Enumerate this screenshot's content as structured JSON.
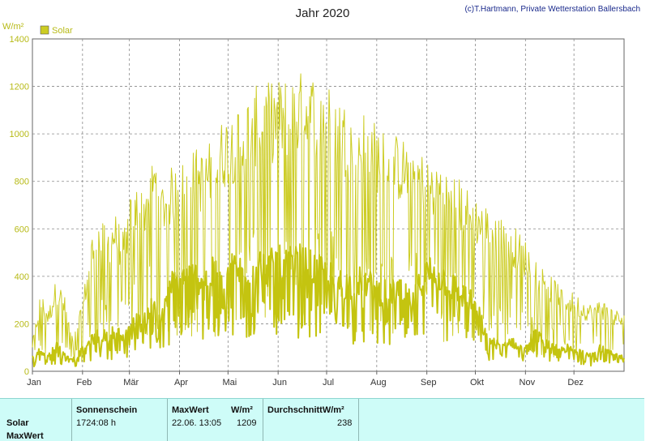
{
  "chart_data": {
    "type": "line",
    "title": "Jahr 2020",
    "credit": "(c)T.Hartmann, Private Wetterstation Ballersbach",
    "ylabel": "W/m²",
    "ylim": [
      0,
      1400
    ],
    "yticks": [
      "0",
      "200",
      "400",
      "600",
      "800",
      "1000",
      "1200",
      "1400"
    ],
    "categories": [
      "Jan",
      "Feb",
      "Mär",
      "Apr",
      "Mai",
      "Jun",
      "Jul",
      "Aug",
      "Sep",
      "Okt",
      "Nov",
      "Dez"
    ],
    "grid": true,
    "legend_position": "top-left",
    "series": [
      {
        "name": "Solar",
        "color": "#cccc22",
        "role": "daily-max",
        "points": [
          [
            0,
            120
          ],
          [
            5,
            320
          ],
          [
            10,
            250
          ],
          [
            15,
            380
          ],
          [
            20,
            300
          ],
          [
            25,
            130
          ],
          [
            31,
            280
          ],
          [
            36,
            540
          ],
          [
            41,
            610
          ],
          [
            46,
            580
          ],
          [
            51,
            640
          ],
          [
            56,
            560
          ],
          [
            60,
            690
          ],
          [
            64,
            760
          ],
          [
            68,
            730
          ],
          [
            72,
            800
          ],
          [
            76,
            880
          ],
          [
            80,
            760
          ],
          [
            86,
            820
          ],
          [
            91,
            830
          ],
          [
            96,
            870
          ],
          [
            101,
            900
          ],
          [
            106,
            880
          ],
          [
            111,
            940
          ],
          [
            116,
            1000
          ],
          [
            121,
            1040
          ],
          [
            126,
            1060
          ],
          [
            131,
            1080
          ],
          [
            136,
            1140
          ],
          [
            141,
            1150
          ],
          [
            146,
            1160
          ],
          [
            151,
            1170
          ],
          [
            156,
            1180
          ],
          [
            161,
            1190
          ],
          [
            166,
            1205
          ],
          [
            171,
            1200
          ],
          [
            176,
            1190
          ],
          [
            181,
            1170
          ],
          [
            186,
            1130
          ],
          [
            191,
            1100
          ],
          [
            196,
            1060
          ],
          [
            201,
            1040
          ],
          [
            206,
            1060
          ],
          [
            211,
            1010
          ],
          [
            216,
            980
          ],
          [
            221,
            960
          ],
          [
            226,
            950
          ],
          [
            231,
            930
          ],
          [
            236,
            940
          ],
          [
            241,
            880
          ],
          [
            246,
            860
          ],
          [
            251,
            850
          ],
          [
            256,
            820
          ],
          [
            261,
            800
          ],
          [
            266,
            760
          ],
          [
            271,
            720
          ],
          [
            276,
            690
          ],
          [
            281,
            670
          ],
          [
            286,
            650
          ],
          [
            291,
            640
          ],
          [
            296,
            600
          ],
          [
            301,
            560
          ],
          [
            306,
            520
          ],
          [
            311,
            470
          ],
          [
            316,
            420
          ],
          [
            321,
            380
          ],
          [
            326,
            360
          ],
          [
            331,
            330
          ],
          [
            336,
            310
          ],
          [
            341,
            290
          ],
          [
            346,
            270
          ],
          [
            351,
            300
          ],
          [
            356,
            270
          ],
          [
            361,
            250
          ],
          [
            366,
            230
          ]
        ]
      },
      {
        "name": "Durchschnitt",
        "color": "#c4c410",
        "role": "daily-mean",
        "points": [
          [
            0,
            60
          ],
          [
            5,
            90
          ],
          [
            10,
            70
          ],
          [
            15,
            110
          ],
          [
            20,
            80
          ],
          [
            25,
            50
          ],
          [
            31,
            90
          ],
          [
            36,
            130
          ],
          [
            41,
            160
          ],
          [
            46,
            150
          ],
          [
            51,
            180
          ],
          [
            56,
            140
          ],
          [
            60,
            190
          ],
          [
            64,
            220
          ],
          [
            68,
            200
          ],
          [
            72,
            260
          ],
          [
            76,
            300
          ],
          [
            80,
            220
          ],
          [
            86,
            370
          ],
          [
            91,
            390
          ],
          [
            96,
            400
          ],
          [
            101,
            410
          ],
          [
            106,
            390
          ],
          [
            111,
            420
          ],
          [
            116,
            400
          ],
          [
            121,
            430
          ],
          [
            126,
            440
          ],
          [
            131,
            420
          ],
          [
            136,
            450
          ],
          [
            141,
            460
          ],
          [
            146,
            440
          ],
          [
            151,
            470
          ],
          [
            156,
            450
          ],
          [
            161,
            460
          ],
          [
            166,
            470
          ],
          [
            171,
            450
          ],
          [
            176,
            430
          ],
          [
            181,
            420
          ],
          [
            186,
            400
          ],
          [
            191,
            380
          ],
          [
            196,
            370
          ],
          [
            201,
            390
          ],
          [
            206,
            380
          ],
          [
            211,
            360
          ],
          [
            216,
            340
          ],
          [
            221,
            330
          ],
          [
            226,
            350
          ],
          [
            231,
            320
          ],
          [
            236,
            300
          ],
          [
            241,
            400
          ],
          [
            246,
            430
          ],
          [
            251,
            410
          ],
          [
            256,
            390
          ],
          [
            261,
            360
          ],
          [
            266,
            330
          ],
          [
            271,
            300
          ],
          [
            276,
            250
          ],
          [
            281,
            140
          ],
          [
            286,
            120
          ],
          [
            291,
            110
          ],
          [
            296,
            130
          ],
          [
            301,
            100
          ],
          [
            306,
            120
          ],
          [
            311,
            160
          ],
          [
            316,
            130
          ],
          [
            321,
            110
          ],
          [
            326,
            90
          ],
          [
            331,
            100
          ],
          [
            336,
            80
          ],
          [
            341,
            90
          ],
          [
            346,
            70
          ],
          [
            351,
            100
          ],
          [
            356,
            80
          ],
          [
            361,
            70
          ],
          [
            366,
            60
          ]
        ]
      }
    ]
  },
  "legend": {
    "label": "Solar"
  },
  "stats": {
    "row_label_1": "Solar",
    "row_label_2": "MaxWert",
    "sonnenschein_header": "Sonnenschein",
    "sonnenschein_value": "1724:08 h",
    "maxwert_header": "MaxWert",
    "maxwert_unit": "W/m²",
    "maxwert_date": "22.06.  13:05",
    "maxwert_value": "1209",
    "durchschnitt_header": "DurchschnittW/m²",
    "durchschnitt_value": "238"
  }
}
